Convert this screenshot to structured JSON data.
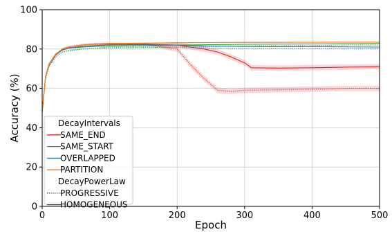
{
  "chart_data": {
    "type": "line",
    "xlabel": "Epoch",
    "ylabel": "Accuracy (%)",
    "xlim": [
      0,
      500
    ],
    "ylim": [
      0,
      100
    ],
    "xticks": [
      0,
      100,
      200,
      300,
      400,
      500
    ],
    "yticks": [
      0,
      20,
      40,
      60,
      80,
      100
    ],
    "grid": true,
    "legend_position": "lower-left",
    "legend_groups": [
      {
        "title": "DecayIntervals",
        "entries": [
          {
            "label": "SAME_END",
            "color": "#d62728",
            "style": "solid"
          },
          {
            "label": "SAME_START",
            "color": "#2ca02c",
            "style": "solid"
          },
          {
            "label": "OVERLAPPED",
            "color": "#1f77b4",
            "style": "solid"
          },
          {
            "label": "PARTITION",
            "color": "#ff7f0e",
            "style": "solid"
          }
        ]
      },
      {
        "title": "DecayPowerLaw",
        "entries": [
          {
            "label": "PROGRESSIVE",
            "color": "#444444",
            "style": "dotted"
          },
          {
            "label": "HOMOGENEOUS",
            "color": "#444444",
            "style": "solid"
          }
        ]
      }
    ],
    "series": [
      {
        "name": "SAME_END",
        "color": "#d62728",
        "style": "dotted",
        "x": [
          0,
          5,
          10,
          20,
          30,
          40,
          60,
          80,
          100,
          150,
          200,
          220,
          240,
          260,
          280,
          300,
          350,
          400,
          450,
          500
        ],
        "y": [
          48,
          66,
          72,
          77,
          80,
          81,
          82,
          82.5,
          82.5,
          82.5,
          80,
          72,
          65,
          59,
          58.5,
          59,
          59.3,
          59.6,
          60,
          60
        ]
      },
      {
        "name": "SAME_END",
        "color": "#d62728",
        "style": "solid",
        "x": [
          0,
          5,
          10,
          20,
          30,
          40,
          60,
          80,
          100,
          150,
          200,
          220,
          240,
          260,
          280,
          300,
          310,
          350,
          400,
          450,
          500
        ],
        "y": [
          48,
          66,
          72,
          77,
          80,
          81,
          82,
          82.5,
          82.5,
          82.5,
          82,
          81,
          80,
          78.5,
          76,
          73,
          70.5,
          70.3,
          70.5,
          70.8,
          71
        ]
      },
      {
        "name": "SAME_START",
        "color": "#2ca02c",
        "style": "dotted",
        "x": [
          0,
          5,
          10,
          20,
          30,
          40,
          60,
          80,
          100,
          150,
          200,
          250,
          300,
          350,
          400,
          450,
          500
        ],
        "y": [
          48,
          65,
          71,
          76,
          78.5,
          79.5,
          80,
          80.3,
          80.5,
          80.7,
          81,
          81.3,
          81.5,
          81.7,
          81.8,
          82,
          82
        ]
      },
      {
        "name": "SAME_START",
        "color": "#2ca02c",
        "style": "solid",
        "x": [
          0,
          5,
          10,
          20,
          30,
          40,
          60,
          80,
          100,
          150,
          200,
          250,
          300,
          350,
          400,
          450,
          500
        ],
        "y": [
          48,
          66,
          72,
          77,
          79.5,
          80.5,
          81,
          81.3,
          81.5,
          81.7,
          82,
          82.2,
          82.4,
          82.5,
          82.6,
          82.7,
          82.8
        ]
      },
      {
        "name": "OVERLAPPED",
        "color": "#1f77b4",
        "style": "dotted",
        "x": [
          0,
          5,
          10,
          20,
          30,
          40,
          60,
          80,
          100,
          150,
          200,
          250,
          300,
          350,
          400,
          450,
          500
        ],
        "y": [
          48,
          65,
          71,
          76,
          78.5,
          79,
          80,
          80.5,
          81,
          81,
          81,
          80.5,
          80.3,
          80.3,
          80.3,
          80.2,
          80.2
        ]
      },
      {
        "name": "OVERLAPPED",
        "color": "#1f77b4",
        "style": "solid",
        "x": [
          0,
          5,
          10,
          20,
          30,
          40,
          60,
          80,
          100,
          150,
          200,
          250,
          300,
          350,
          400,
          450,
          500
        ],
        "y": [
          48,
          66,
          72,
          77,
          79.5,
          80.5,
          81.3,
          81.8,
          82,
          82.2,
          82,
          81.5,
          81.3,
          81.2,
          81.2,
          81.1,
          81
        ]
      },
      {
        "name": "PARTITION",
        "color": "#ff7f0e",
        "style": "dotted",
        "x": [
          0,
          5,
          10,
          20,
          30,
          40,
          60,
          80,
          100,
          150,
          200,
          250,
          300,
          350,
          400,
          450,
          500
        ],
        "y": [
          48,
          66,
          72,
          77,
          80,
          81,
          82,
          82.5,
          82.8,
          83,
          83,
          83.2,
          83.3,
          83.3,
          83.4,
          83.4,
          83.5
        ]
      },
      {
        "name": "PARTITION",
        "color": "#ff7f0e",
        "style": "solid",
        "x": [
          0,
          5,
          10,
          20,
          30,
          40,
          60,
          80,
          100,
          150,
          200,
          250,
          300,
          350,
          400,
          450,
          500
        ],
        "y": [
          48,
          66,
          72.5,
          77.5,
          80,
          81,
          82,
          82.5,
          82.8,
          83,
          83.2,
          83.3,
          83.4,
          83.4,
          83.5,
          83.5,
          83.5
        ]
      }
    ]
  }
}
